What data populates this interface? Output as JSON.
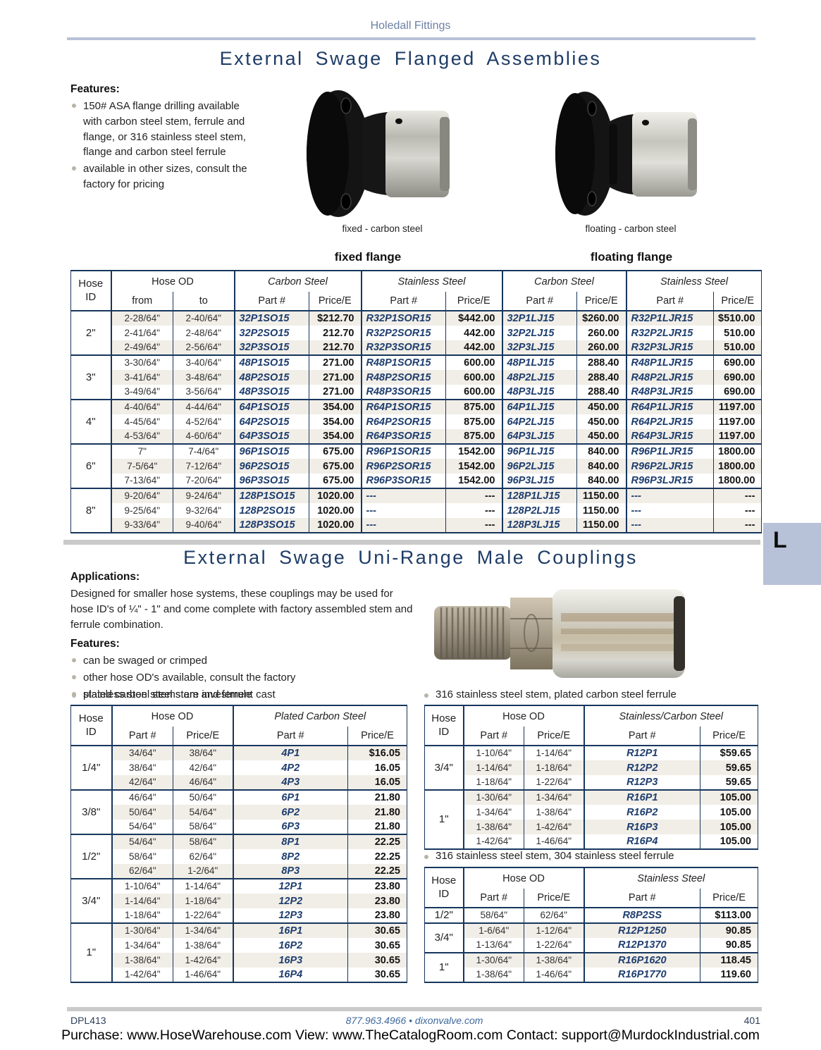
{
  "header": "Holedall Fittings",
  "tab_letter": "L",
  "section1": {
    "title": "External Swage Flanged Assemblies",
    "features_label": "Features:",
    "features": [
      "150# ASA flange drilling available with carbon steel stem, ferrule and flange, or 316 stainless steel stem, flange and carbon steel ferrule",
      "available in other sizes, consult the factory for pricing"
    ],
    "caption_fixed": "fixed - carbon steel",
    "caption_floating": "floating - carbon steel",
    "flange_label_fixed": "fixed flange",
    "flange_label_floating": "floating flange",
    "table": {
      "headers": {
        "hose_id": "Hose\nID",
        "hose_od": "Hose OD",
        "carbon": "Carbon Steel",
        "stainless": "Stainless Steel",
        "from": "from",
        "to": "to",
        "part": "Part #",
        "price": "Price/E"
      },
      "groups": [
        {
          "id": "2\"",
          "rows": [
            [
              "2-28/64\"",
              "2-40/64\"",
              "32P1SO15",
              "$212.70",
              "R32P1SOR15",
              "$442.00",
              "32P1LJ15",
              "$260.00",
              "R32P1LJR15",
              "$510.00"
            ],
            [
              "2-41/64\"",
              "2-48/64\"",
              "32P2SO15",
              "212.70",
              "R32P2SOR15",
              "442.00",
              "32P2LJ15",
              "260.00",
              "R32P2LJR15",
              "510.00"
            ],
            [
              "2-49/64\"",
              "2-56/64\"",
              "32P3SO15",
              "212.70",
              "R32P3SOR15",
              "442.00",
              "32P3LJ15",
              "260.00",
              "R32P3LJR15",
              "510.00"
            ]
          ]
        },
        {
          "id": "3\"",
          "rows": [
            [
              "3-30/64\"",
              "3-40/64\"",
              "48P1SO15",
              "271.00",
              "R48P1SOR15",
              "600.00",
              "48P1LJ15",
              "288.40",
              "R48P1LJR15",
              "690.00"
            ],
            [
              "3-41/64\"",
              "3-48/64\"",
              "48P2SO15",
              "271.00",
              "R48P2SOR15",
              "600.00",
              "48P2LJ15",
              "288.40",
              "R48P2LJR15",
              "690.00"
            ],
            [
              "3-49/64\"",
              "3-56/64\"",
              "48P3SO15",
              "271.00",
              "R48P3SOR15",
              "600.00",
              "48P3LJ15",
              "288.40",
              "R48P3LJR15",
              "690.00"
            ]
          ]
        },
        {
          "id": "4\"",
          "rows": [
            [
              "4-40/64\"",
              "4-44/64\"",
              "64P1SO15",
              "354.00",
              "R64P1SOR15",
              "875.00",
              "64P1LJ15",
              "450.00",
              "R64P1LJR15",
              "1197.00"
            ],
            [
              "4-45/64\"",
              "4-52/64\"",
              "64P2SO15",
              "354.00",
              "R64P2SOR15",
              "875.00",
              "64P2LJ15",
              "450.00",
              "R64P2LJR15",
              "1197.00"
            ],
            [
              "4-53/64\"",
              "4-60/64\"",
              "64P3SO15",
              "354.00",
              "R64P3SOR15",
              "875.00",
              "64P3LJ15",
              "450.00",
              "R64P3LJR15",
              "1197.00"
            ]
          ]
        },
        {
          "id": "6\"",
          "rows": [
            [
              "7\"",
              "7-4/64\"",
              "96P1SO15",
              "675.00",
              "R96P1SOR15",
              "1542.00",
              "96P1LJ15",
              "840.00",
              "R96P1LJR15",
              "1800.00"
            ],
            [
              "7-5/64\"",
              "7-12/64\"",
              "96P2SO15",
              "675.00",
              "R96P2SOR15",
              "1542.00",
              "96P2LJ15",
              "840.00",
              "R96P2LJR15",
              "1800.00"
            ],
            [
              "7-13/64\"",
              "7-20/64\"",
              "96P3SO15",
              "675.00",
              "R96P3SOR15",
              "1542.00",
              "96P3LJ15",
              "840.00",
              "R96P3LJR15",
              "1800.00"
            ]
          ]
        },
        {
          "id": "8\"",
          "rows": [
            [
              "9-20/64\"",
              "9-24/64\"",
              "128P1SO15",
              "1020.00",
              "---",
              "---",
              "128P1LJ15",
              "1150.00",
              "---",
              "---"
            ],
            [
              "9-25/64\"",
              "9-32/64\"",
              "128P2SO15",
              "1020.00",
              "---",
              "---",
              "128P2LJ15",
              "1150.00",
              "---",
              "---"
            ],
            [
              "9-33/64\"",
              "9-40/64\"",
              "128P3SO15",
              "1020.00",
              "---",
              "---",
              "128P3LJ15",
              "1150.00",
              "---",
              "---"
            ]
          ]
        }
      ]
    }
  },
  "section2": {
    "title": "External Swage Uni-Range Male Couplings",
    "applications_label": "Applications:",
    "applications_text": "Designed for smaller hose systems, these couplings may be used for hose ID's of ¼\" - 1\" and come complete with factory assembled stem and ferrule combination.",
    "features_label": "Features:",
    "features": [
      "can be swaged or crimped",
      "other hose OD's available, consult the factory",
      "stainless steel stems are investment cast"
    ],
    "table_headers": {
      "hose_id": "Hose\nID",
      "hose_od": "Hose OD",
      "part": "Part #",
      "price": "Price/E"
    },
    "tables": [
      {
        "bullet": "plated carbon steel stem and ferrule",
        "steel_header": "Plated Carbon Steel",
        "groups": [
          {
            "id": "1/4\"",
            "rows": [
              [
                "34/64\"",
                "38/64\"",
                "4P1",
                "$16.05"
              ],
              [
                "38/64\"",
                "42/64\"",
                "4P2",
                "16.05"
              ],
              [
                "42/64\"",
                "46/64\"",
                "4P3",
                "16.05"
              ]
            ]
          },
          {
            "id": "3/8\"",
            "rows": [
              [
                "46/64\"",
                "50/64\"",
                "6P1",
                "21.80"
              ],
              [
                "50/64\"",
                "54/64\"",
                "6P2",
                "21.80"
              ],
              [
                "54/64\"",
                "58/64\"",
                "6P3",
                "21.80"
              ]
            ]
          },
          {
            "id": "1/2\"",
            "rows": [
              [
                "54/64\"",
                "58/64\"",
                "8P1",
                "22.25"
              ],
              [
                "58/64\"",
                "62/64\"",
                "8P2",
                "22.25"
              ],
              [
                "62/64\"",
                "1-2/64\"",
                "8P3",
                "22.25"
              ]
            ]
          },
          {
            "id": "3/4\"",
            "rows": [
              [
                "1-10/64\"",
                "1-14/64\"",
                "12P1",
                "23.80"
              ],
              [
                "1-14/64\"",
                "1-18/64\"",
                "12P2",
                "23.80"
              ],
              [
                "1-18/64\"",
                "1-22/64\"",
                "12P3",
                "23.80"
              ]
            ]
          },
          {
            "id": "1\"",
            "rows": [
              [
                "1-30/64\"",
                "1-34/64\"",
                "16P1",
                "30.65"
              ],
              [
                "1-34/64\"",
                "1-38/64\"",
                "16P2",
                "30.65"
              ],
              [
                "1-38/64\"",
                "1-42/64\"",
                "16P3",
                "30.65"
              ],
              [
                "1-42/64\"",
                "1-46/64\"",
                "16P4",
                "30.65"
              ]
            ]
          }
        ]
      },
      {
        "bullet": "316 stainless steel stem, plated carbon steel ferrule",
        "steel_header": "Stainless/Carbon Steel",
        "groups": [
          {
            "id": "3/4\"",
            "rows": [
              [
                "1-10/64\"",
                "1-14/64\"",
                "R12P1",
                "$59.65"
              ],
              [
                "1-14/64\"",
                "1-18/64\"",
                "R12P2",
                "59.65"
              ],
              [
                "1-18/64\"",
                "1-22/64\"",
                "R12P3",
                "59.65"
              ]
            ]
          },
          {
            "id": "1\"",
            "rows": [
              [
                "1-30/64\"",
                "1-34/64\"",
                "R16P1",
                "105.00"
              ],
              [
                "1-34/64\"",
                "1-38/64\"",
                "R16P2",
                "105.00"
              ],
              [
                "1-38/64\"",
                "1-42/64\"",
                "R16P3",
                "105.00"
              ],
              [
                "1-42/64\"",
                "1-46/64\"",
                "R16P4",
                "105.00"
              ]
            ]
          }
        ]
      },
      {
        "bullet": "316 stainless steel stem, 304 stainless steel ferrule",
        "steel_header": "Stainless Steel",
        "groups": [
          {
            "id": "1/2\"",
            "rows": [
              [
                "58/64\"",
                "62/64\"",
                "R8P2SS",
                "$113.00"
              ]
            ]
          },
          {
            "id": "3/4\"",
            "rows": [
              [
                "1-6/64\"",
                "1-12/64\"",
                "R12P1250",
                "90.85"
              ],
              [
                "1-13/64\"",
                "1-22/64\"",
                "R12P1370",
                "90.85"
              ]
            ]
          },
          {
            "id": "1\"",
            "rows": [
              [
                "1-30/64\"",
                "1-38/64\"",
                "R16P1620",
                "118.45"
              ],
              [
                "1-38/64\"",
                "1-46/64\"",
                "R16P1770",
                "119.60"
              ]
            ]
          }
        ]
      }
    ]
  },
  "footer": {
    "doc_code": "DPL413",
    "center": "877.963.4966 • dixonvalve.com",
    "page_number": "401",
    "purchase_line": "Purchase: www.HoseWarehouse.com View: www.TheCatalogRoom.com Contact: support@MurdockIndustrial.com"
  },
  "colors": {
    "navy_border": "#17365d",
    "part_number_blue": "#1d3d6e",
    "title_blue": "#1e3c66",
    "header_slate": "#6d81a5",
    "rule_periwinkle": "#b7c2d8",
    "stripe_beige": "#f1eee7",
    "tab_bg": "#b7c1d7",
    "divider_gray": "#cacaca"
  }
}
